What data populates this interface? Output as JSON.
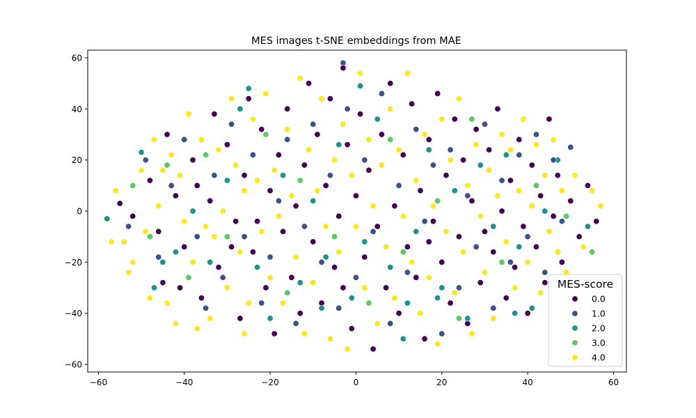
{
  "chart_data": {
    "type": "scatter",
    "title": "MES images t-SNE embeddings from MAE",
    "xlabel": "",
    "ylabel": "",
    "xlim": [
      -62.5,
      63
    ],
    "ylim": [
      -63,
      63
    ],
    "xticks": [
      -60,
      -40,
      -20,
      0,
      20,
      40,
      60
    ],
    "yticks": [
      -60,
      -40,
      -20,
      0,
      20,
      40,
      60
    ],
    "grid": false,
    "legend": {
      "title": "MES-score",
      "placement": "bottom-right",
      "entries": [
        "0.0",
        "1.0",
        "2.0",
        "3.0",
        "4.0"
      ]
    },
    "series": [
      {
        "name": "0.0",
        "color": "#440154",
        "points": [
          [
            -55,
            3
          ],
          [
            -52,
            -2
          ],
          [
            -48,
            12
          ],
          [
            -45,
            -28
          ],
          [
            -44,
            30
          ],
          [
            -42,
            6
          ],
          [
            -40,
            -14
          ],
          [
            -38,
            20
          ],
          [
            -36,
            -34
          ],
          [
            -34,
            4
          ],
          [
            -33,
            38
          ],
          [
            -32,
            -22
          ],
          [
            -30,
            26
          ],
          [
            -28,
            -4
          ],
          [
            -27,
            -42
          ],
          [
            -26,
            14
          ],
          [
            -25,
            44
          ],
          [
            -24,
            -16
          ],
          [
            -22,
            32
          ],
          [
            -21,
            -30
          ],
          [
            -20,
            8
          ],
          [
            -19,
            -48
          ],
          [
            -18,
            22
          ],
          [
            -17,
            -8
          ],
          [
            -16,
            40
          ],
          [
            -15,
            -26
          ],
          [
            -14,
            2
          ],
          [
            -13,
            -40
          ],
          [
            -12,
            18
          ],
          [
            -11,
            50
          ],
          [
            -10,
            -12
          ],
          [
            -9,
            30
          ],
          [
            -8,
            -36
          ],
          [
            -7,
            10
          ],
          [
            -6,
            44
          ],
          [
            -5,
            -22
          ],
          [
            -4,
            -2
          ],
          [
            -3,
            56
          ],
          [
            -2,
            26
          ],
          [
            -1,
            -46
          ],
          [
            0,
            6
          ],
          [
            1,
            38
          ],
          [
            2,
            -18
          ],
          [
            3,
            16
          ],
          [
            4,
            -54
          ],
          [
            5,
            -6
          ],
          [
            6,
            30
          ],
          [
            7,
            -30
          ],
          [
            8,
            50
          ],
          [
            9,
            2
          ],
          [
            10,
            -40
          ],
          [
            11,
            22
          ],
          [
            12,
            -14
          ],
          [
            13,
            42
          ],
          [
            14,
            -26
          ],
          [
            15,
            8
          ],
          [
            16,
            -50
          ],
          [
            17,
            28
          ],
          [
            18,
            -4
          ],
          [
            19,
            46
          ],
          [
            20,
            -20
          ],
          [
            21,
            14
          ],
          [
            22,
            -36
          ],
          [
            23,
            36
          ],
          [
            24,
            -10
          ],
          [
            25,
            20
          ],
          [
            26,
            -44
          ],
          [
            27,
            4
          ],
          [
            28,
            32
          ],
          [
            29,
            -28
          ],
          [
            30,
            -8
          ],
          [
            31,
            24
          ],
          [
            32,
            -16
          ],
          [
            33,
            40
          ],
          [
            34,
            0
          ],
          [
            35,
            -34
          ],
          [
            36,
            12
          ],
          [
            37,
            -22
          ],
          [
            38,
            28
          ],
          [
            39,
            -6
          ],
          [
            40,
            -40
          ],
          [
            41,
            18
          ],
          [
            42,
            -14
          ],
          [
            43,
            6
          ],
          [
            44,
            -28
          ],
          [
            45,
            36
          ],
          [
            46,
            -2
          ],
          [
            47,
            14
          ],
          [
            48,
            -20
          ],
          [
            50,
            4
          ],
          [
            52,
            -10
          ],
          [
            54,
            10
          ],
          [
            56,
            -4
          ],
          [
            -46,
            -8
          ],
          [
            -41,
            -30
          ],
          [
            -37,
            10
          ],
          [
            -29,
            -14
          ],
          [
            -23,
            -4
          ],
          [
            -3,
            -30
          ],
          [
            17,
            -12
          ]
        ]
      },
      {
        "name": "1.0",
        "color": "#3b528b",
        "points": [
          [
            -53,
            -6
          ],
          [
            -49,
            20
          ],
          [
            -46,
            -18
          ],
          [
            -43,
            10
          ],
          [
            -40,
            28
          ],
          [
            -37,
            -10
          ],
          [
            -35,
            -38
          ],
          [
            -33,
            14
          ],
          [
            -31,
            -26
          ],
          [
            -29,
            34
          ],
          [
            -26,
            -10
          ],
          [
            -24,
            22
          ],
          [
            -22,
            -36
          ],
          [
            -20,
            -18
          ],
          [
            -18,
            4
          ],
          [
            -16,
            28
          ],
          [
            -14,
            -44
          ],
          [
            -12,
            -6
          ],
          [
            -10,
            34
          ],
          [
            -8,
            -20
          ],
          [
            -6,
            14
          ],
          [
            -4,
            -38
          ],
          [
            -2,
            40
          ],
          [
            0,
            -26
          ],
          [
            2,
            20
          ],
          [
            4,
            -8
          ],
          [
            6,
            46
          ],
          [
            8,
            -44
          ],
          [
            10,
            10
          ],
          [
            12,
            -24
          ],
          [
            14,
            32
          ],
          [
            16,
            -4
          ],
          [
            18,
            18
          ],
          [
            20,
            -48
          ],
          [
            22,
            24
          ],
          [
            24,
            -30
          ],
          [
            26,
            6
          ],
          [
            28,
            -14
          ],
          [
            30,
            34
          ],
          [
            32,
            -38
          ],
          [
            34,
            12
          ],
          [
            36,
            -20
          ],
          [
            38,
            22
          ],
          [
            40,
            -10
          ],
          [
            42,
            30
          ],
          [
            44,
            -24
          ],
          [
            46,
            20
          ],
          [
            48,
            -4
          ],
          [
            50,
            25
          ],
          [
            -3,
            58
          ]
        ]
      },
      {
        "name": "2.0",
        "color": "#21918c",
        "points": [
          [
            -58,
            -3
          ],
          [
            -50,
            23
          ],
          [
            -47,
            -30
          ],
          [
            -42,
            -16
          ],
          [
            -38,
            0
          ],
          [
            -34,
            -20
          ],
          [
            -30,
            12
          ],
          [
            -27,
            40
          ],
          [
            -23,
            -22
          ],
          [
            -20,
            -42
          ],
          [
            -17,
            14
          ],
          [
            -13,
            -28
          ],
          [
            -10,
            4
          ],
          [
            -7,
            -18
          ],
          [
            -4,
            26
          ],
          [
            -1,
            -34
          ],
          [
            2,
            -12
          ],
          [
            5,
            36
          ],
          [
            8,
            -22
          ],
          [
            11,
            -50
          ],
          [
            14,
            -8
          ],
          [
            17,
            24
          ],
          [
            20,
            -30
          ],
          [
            23,
            8
          ],
          [
            26,
            -42
          ],
          [
            29,
            18
          ],
          [
            32,
            -6
          ],
          [
            35,
            22
          ],
          [
            38,
            -14
          ],
          [
            41,
            -38
          ],
          [
            44,
            0
          ],
          [
            47,
            20
          ],
          [
            -25,
            48
          ],
          [
            1,
            49
          ],
          [
            19,
            -34
          ],
          [
            54,
            -6
          ],
          [
            37,
            -40
          ],
          [
            -45,
            -20
          ],
          [
            12,
            -36
          ],
          [
            -8,
            -38
          ]
        ]
      },
      {
        "name": "3.0",
        "color": "#5ec962",
        "points": [
          [
            -52,
            10
          ],
          [
            -44,
            18
          ],
          [
            -39,
            -26
          ],
          [
            -30,
            -10
          ],
          [
            -21,
            30
          ],
          [
            -13,
            12
          ],
          [
            -5,
            -10
          ],
          [
            3,
            -36
          ],
          [
            11,
            -16
          ],
          [
            19,
            4
          ],
          [
            27,
            36
          ],
          [
            34,
            -20
          ],
          [
            42,
            10
          ],
          [
            49,
            -2
          ],
          [
            55,
            -16
          ],
          [
            -48,
            -10
          ],
          [
            -16,
            -32
          ],
          [
            8,
            28
          ],
          [
            24,
            -42
          ],
          [
            -35,
            22
          ]
        ]
      },
      {
        "name": "4.0",
        "color": "#fde725",
        "points": [
          [
            -56,
            8
          ],
          [
            -54,
            -12
          ],
          [
            -52,
            -20
          ],
          [
            -50,
            16
          ],
          [
            -49,
            -8
          ],
          [
            -47,
            28
          ],
          [
            -46,
            2
          ],
          [
            -44,
            -36
          ],
          [
            -43,
            22
          ],
          [
            -41,
            14
          ],
          [
            -40,
            -4
          ],
          [
            -39,
            38
          ],
          [
            -38,
            -20
          ],
          [
            -36,
            28
          ],
          [
            -35,
            -6
          ],
          [
            -34,
            -42
          ],
          [
            -32,
            24
          ],
          [
            -31,
            0
          ],
          [
            -30,
            -30
          ],
          [
            -29,
            44
          ],
          [
            -28,
            18
          ],
          [
            -27,
            -16
          ],
          [
            -26,
            8
          ],
          [
            -25,
            -36
          ],
          [
            -24,
            36
          ],
          [
            -23,
            12
          ],
          [
            -22,
            -8
          ],
          [
            -21,
            46
          ],
          [
            -20,
            -26
          ],
          [
            -19,
            16
          ],
          [
            -18,
            -2
          ],
          [
            -17,
            -36
          ],
          [
            -16,
            32
          ],
          [
            -15,
            6
          ],
          [
            -14,
            -18
          ],
          [
            -13,
            52
          ],
          [
            -12,
            -48
          ],
          [
            -11,
            24
          ],
          [
            -10,
            -28
          ],
          [
            -9,
            8
          ],
          [
            -8,
            44
          ],
          [
            -7,
            -6
          ],
          [
            -6,
            -50
          ],
          [
            -5,
            20
          ],
          [
            -4,
            -16
          ],
          [
            -3,
            34
          ],
          [
            -2,
            -54
          ],
          [
            -1,
            14
          ],
          [
            0,
            -6
          ],
          [
            1,
            54
          ],
          [
            2,
            -30
          ],
          [
            3,
            28
          ],
          [
            4,
            2
          ],
          [
            5,
            -44
          ],
          [
            6,
            18
          ],
          [
            7,
            -14
          ],
          [
            8,
            40
          ],
          [
            9,
            -34
          ],
          [
            10,
            24
          ],
          [
            11,
            -2
          ],
          [
            12,
            54
          ],
          [
            13,
            -20
          ],
          [
            14,
            12
          ],
          [
            15,
            -40
          ],
          [
            16,
            30
          ],
          [
            17,
            -26
          ],
          [
            18,
            2
          ],
          [
            19,
            -52
          ],
          [
            20,
            36
          ],
          [
            21,
            -8
          ],
          [
            22,
            20
          ],
          [
            23,
            -32
          ],
          [
            24,
            44
          ],
          [
            25,
            -16
          ],
          [
            26,
            10
          ],
          [
            27,
            -48
          ],
          [
            28,
            26
          ],
          [
            29,
            -2
          ],
          [
            30,
            -24
          ],
          [
            31,
            16
          ],
          [
            32,
            -42
          ],
          [
            33,
            6
          ],
          [
            34,
            30
          ],
          [
            35,
            -12
          ],
          [
            36,
            24
          ],
          [
            37,
            -30
          ],
          [
            38,
            8
          ],
          [
            39,
            36
          ],
          [
            40,
            -20
          ],
          [
            41,
            2
          ],
          [
            42,
            26
          ],
          [
            43,
            -32
          ],
          [
            44,
            14
          ],
          [
            45,
            -8
          ],
          [
            46,
            28
          ],
          [
            47,
            -16
          ],
          [
            48,
            8
          ],
          [
            49,
            -24
          ],
          [
            51,
            14
          ],
          [
            53,
            -14
          ],
          [
            55,
            8
          ],
          [
            57,
            2
          ],
          [
            -57,
            -12
          ],
          [
            -53,
            -24
          ],
          [
            -48,
            -34
          ],
          [
            -45,
            16
          ],
          [
            -42,
            -44
          ],
          [
            -37,
            -46
          ],
          [
            -33,
            -10
          ],
          [
            -26,
            -48
          ]
        ]
      }
    ]
  }
}
